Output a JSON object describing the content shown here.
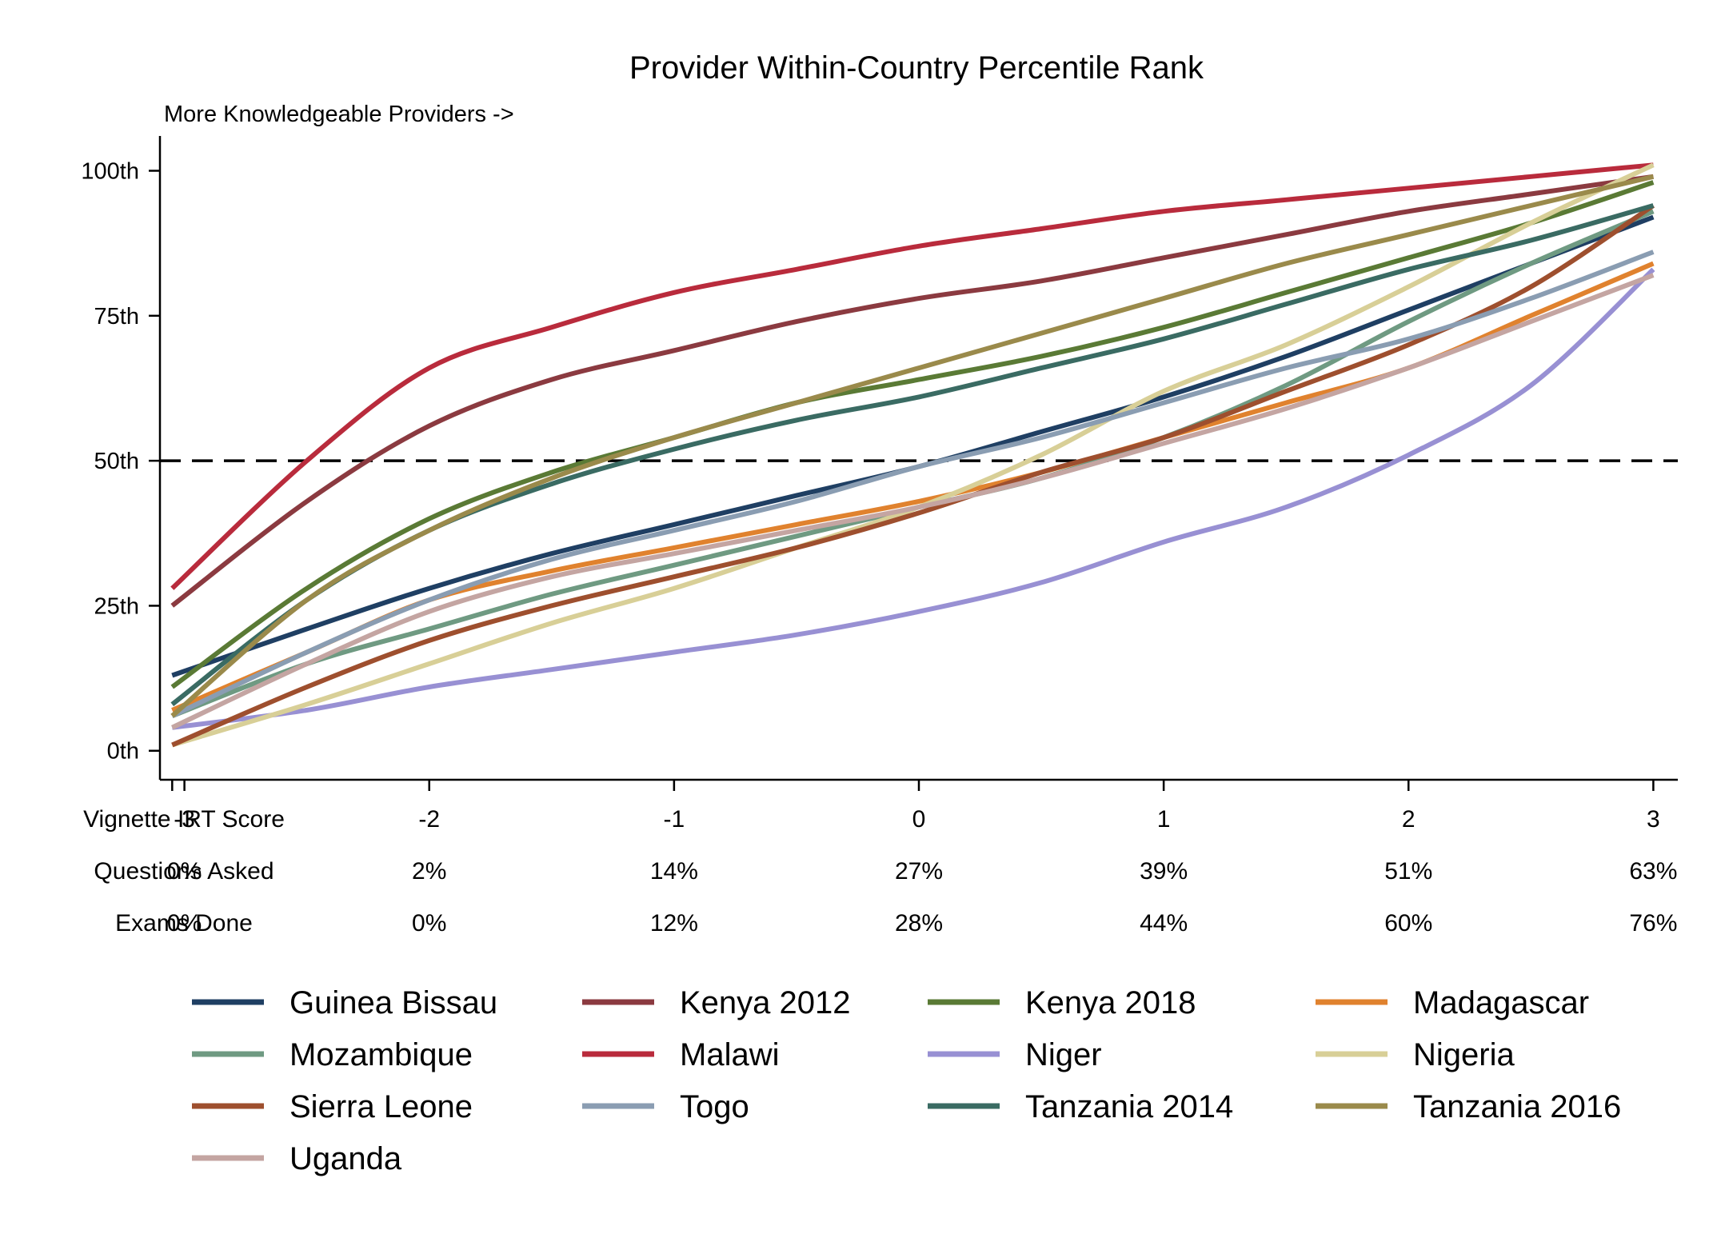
{
  "chart_data": {
    "type": "line",
    "title": "Provider Within-Country Percentile Rank",
    "subtitle": "More Knowledgeable Providers ->",
    "xlabel": "Vignette IRT Score",
    "ylabel": "",
    "xlim": [
      -3.1,
      3.1
    ],
    "ylim": [
      -5,
      106
    ],
    "x_ticks": [
      -3,
      -2,
      -1,
      0,
      1,
      2,
      3
    ],
    "x_tick_labels": [
      "-3",
      "-2",
      "-1",
      "0",
      "1",
      "2",
      "3"
    ],
    "y_ticks": [
      0,
      25,
      50,
      75,
      100
    ],
    "y_tick_labels": [
      "0th",
      "25th",
      "50th",
      "75th",
      "100th"
    ],
    "reference_line": {
      "y": 50,
      "style": "dashed",
      "color": "#000000"
    },
    "extra_rows": [
      {
        "label": "Questions Asked",
        "values": [
          "0%",
          "2%",
          "14%",
          "27%",
          "39%",
          "51%",
          "63%"
        ]
      },
      {
        "label": "Exams Done",
        "values": [
          "0%",
          "0%",
          "12%",
          "28%",
          "44%",
          "60%",
          "76%"
        ]
      }
    ],
    "x": [
      -3.0,
      -2.5,
      -2.0,
      -1.5,
      -1.0,
      -0.5,
      0.0,
      0.5,
      1.0,
      1.5,
      2.0,
      2.5,
      3.0
    ],
    "series": [
      {
        "name": "Guinea Bissau",
        "color": "#1f3f63",
        "values": [
          13,
          21,
          28,
          34,
          39,
          44,
          49,
          55,
          61,
          68,
          76,
          84,
          92
        ]
      },
      {
        "name": "Kenya 2012",
        "color": "#8b3a40",
        "values": [
          25,
          43,
          56,
          64,
          69,
          74,
          78,
          81,
          85,
          89,
          93,
          96,
          99
        ]
      },
      {
        "name": "Kenya 2018",
        "color": "#5a7a35",
        "values": [
          11,
          28,
          40,
          48,
          54,
          60,
          64,
          68,
          73,
          79,
          85,
          91,
          98
        ]
      },
      {
        "name": "Madagascar",
        "color": "#e0822e",
        "values": [
          7,
          17,
          26,
          31,
          35,
          39,
          43,
          48,
          54,
          60,
          66,
          75,
          84
        ]
      },
      {
        "name": "Mozambique",
        "color": "#6f9a82",
        "values": [
          6,
          15,
          21,
          27,
          32,
          37,
          42,
          47,
          54,
          63,
          74,
          84,
          93
        ]
      },
      {
        "name": "Malawi",
        "color": "#b92b3c",
        "values": [
          28,
          50,
          66,
          73,
          79,
          83,
          87,
          90,
          93,
          95,
          97,
          99,
          101
        ]
      },
      {
        "name": "Niger",
        "color": "#9890d3",
        "values": [
          4,
          7,
          11,
          14,
          17,
          20,
          24,
          29,
          36,
          42,
          51,
          63,
          83
        ]
      },
      {
        "name": "Nigeria",
        "color": "#d8cf97",
        "values": [
          1,
          8,
          15,
          22,
          28,
          35,
          42,
          51,
          62,
          70,
          80,
          91,
          101
        ]
      },
      {
        "name": "Sierra Leone",
        "color": "#9e4f2e",
        "values": [
          1,
          11,
          19,
          25,
          30,
          35,
          41,
          48,
          54,
          62,
          70,
          80,
          94
        ]
      },
      {
        "name": "Togo",
        "color": "#8a9db2",
        "values": [
          6,
          17,
          26,
          33,
          38,
          43,
          49,
          54,
          60,
          66,
          71,
          78,
          86
        ]
      },
      {
        "name": "Tanzania 2014",
        "color": "#3a6b63",
        "values": [
          8,
          26,
          38,
          46,
          52,
          57,
          61,
          66,
          71,
          77,
          83,
          88,
          94
        ]
      },
      {
        "name": "Tanzania 2016",
        "color": "#9a8a4b",
        "values": [
          6,
          26,
          38,
          47,
          54,
          60,
          66,
          72,
          78,
          84,
          89,
          94,
          99
        ]
      },
      {
        "name": "Uganda",
        "color": "#c4a5a2",
        "values": [
          4,
          15,
          24,
          30,
          34,
          38,
          42,
          47,
          53,
          59,
          66,
          74,
          82
        ]
      }
    ],
    "legend": {
      "placement": "bottom",
      "columns": 4
    },
    "grid": false
  }
}
